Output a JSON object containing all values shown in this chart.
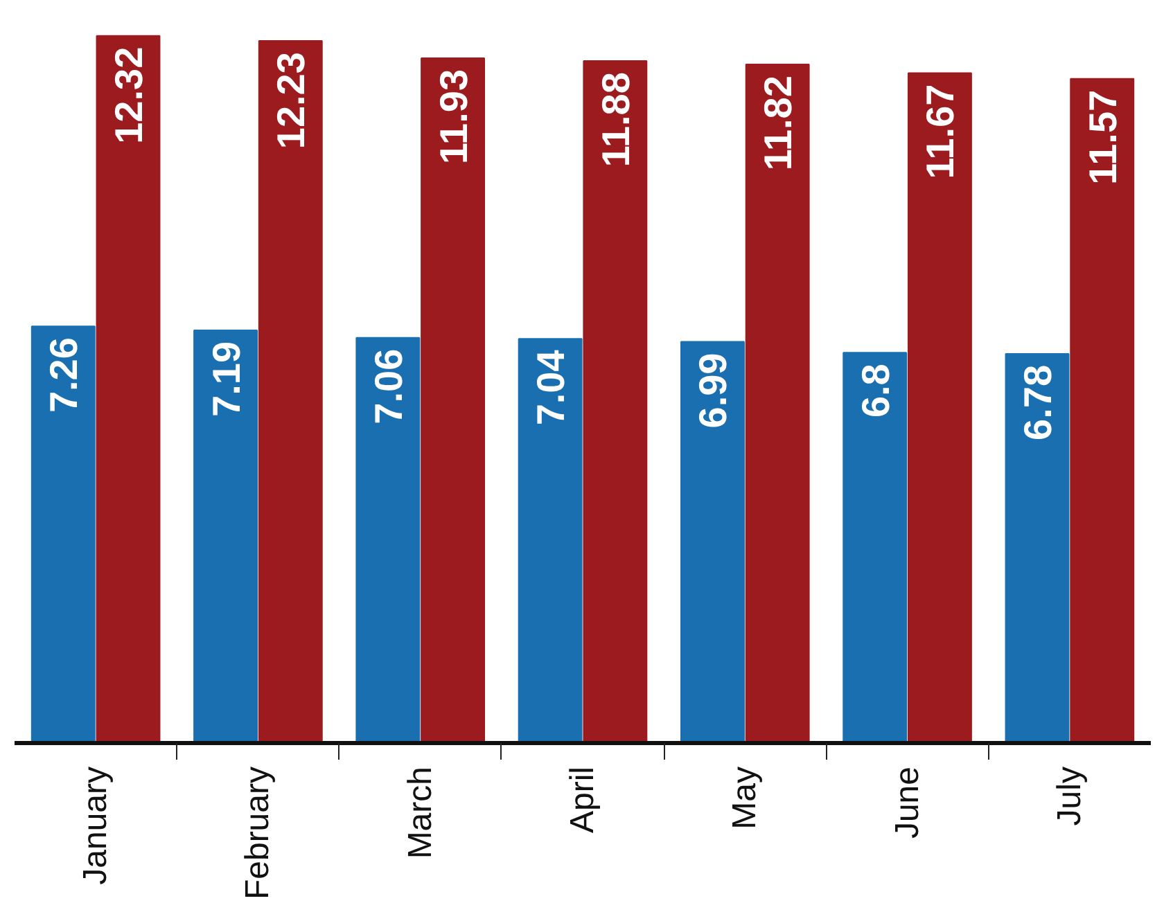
{
  "chart_data": {
    "type": "bar",
    "categories": [
      "January",
      "February",
      "March",
      "April",
      "May",
      "June",
      "July"
    ],
    "series": [
      {
        "color": "#1a6fb0",
        "values": [
          7.26,
          7.19,
          7.06,
          7.04,
          6.99,
          6.8,
          6.78
        ]
      },
      {
        "color": "#9b1b1e",
        "values": [
          12.32,
          12.23,
          11.93,
          11.88,
          11.82,
          11.67,
          11.57
        ]
      }
    ],
    "data_labels": true,
    "grid": false,
    "tick_labels": "x"
  }
}
